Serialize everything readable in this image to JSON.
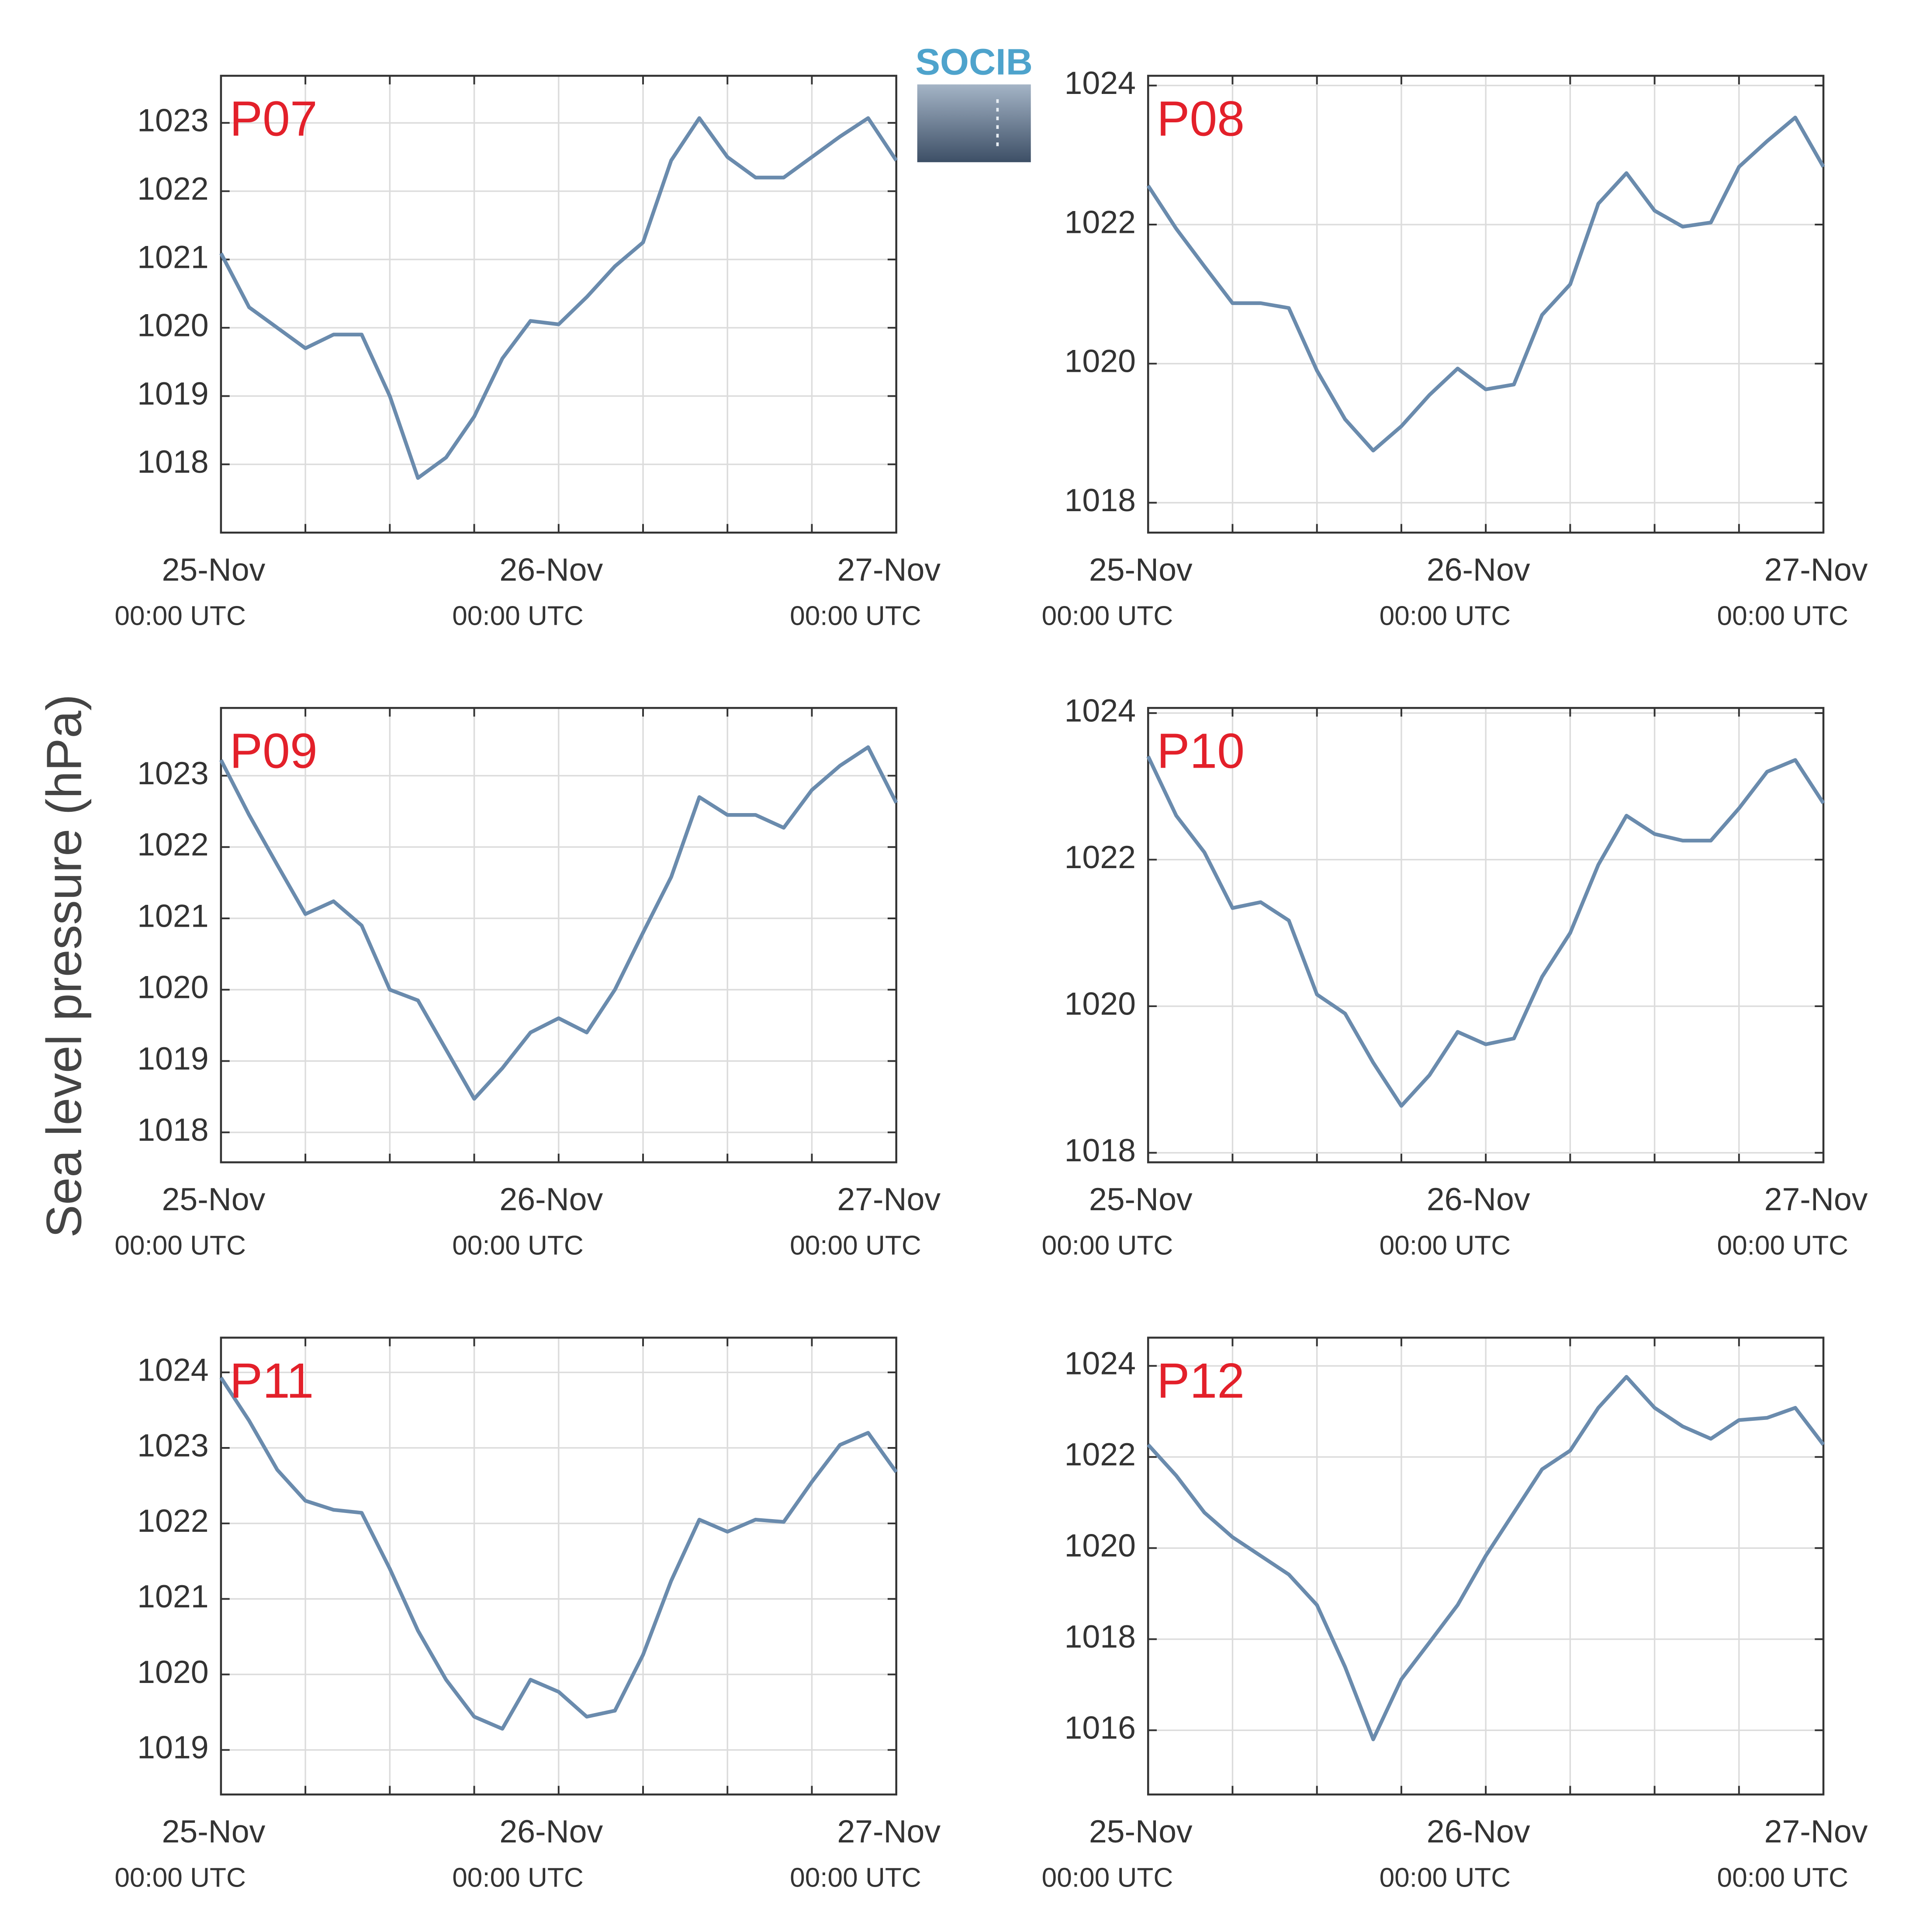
{
  "ylabel": "Sea level pressure (hPa)",
  "logo": "SOCIB",
  "chart_data": [
    {
      "type": "line",
      "title": "P07",
      "color": "#6a8bad",
      "x": [
        0,
        2,
        4,
        6,
        8,
        10,
        12,
        14,
        16,
        18,
        20,
        22,
        24,
        26,
        28,
        30,
        32,
        34,
        36,
        38,
        40,
        42,
        44,
        46,
        48
      ],
      "values": [
        1021.09,
        1020.3,
        1020.0,
        1019.7,
        1019.9,
        1019.9,
        1019.0,
        1017.8,
        1018.1,
        1018.7,
        1019.55,
        1020.1,
        1020.05,
        1020.45,
        1020.9,
        1021.25,
        1022.45,
        1023.07,
        1022.5,
        1022.2,
        1022.2,
        1022.5,
        1022.8,
        1023.07,
        1022.45
      ],
      "xlim": [
        0,
        48
      ],
      "xticks": [
        {
          "value": 0,
          "label": "25-Nov",
          "sublabel": "00:00 UTC"
        },
        {
          "value": 24,
          "label": "26-Nov",
          "sublabel": "00:00 UTC"
        },
        {
          "value": 48,
          "label": "27-Nov",
          "sublabel": "00:00 UTC"
        }
      ],
      "xgrid": [
        6,
        12,
        18,
        30,
        36,
        42
      ],
      "ylim": [
        1017.0,
        1023.69
      ],
      "yticks": [
        1018,
        1019,
        1020,
        1021,
        1022,
        1023
      ],
      "grid": true
    },
    {
      "type": "line",
      "title": "P08",
      "color": "#6a8bad",
      "x": [
        0,
        2,
        4,
        6,
        8,
        10,
        12,
        14,
        16,
        18,
        20,
        22,
        24,
        26,
        28,
        30,
        32,
        34,
        36,
        38,
        40,
        42,
        44,
        46,
        48
      ],
      "values": [
        1022.56,
        1021.94,
        1021.4,
        1020.87,
        1020.87,
        1020.8,
        1019.9,
        1019.2,
        1018.75,
        1019.1,
        1019.55,
        1019.93,
        1019.63,
        1019.7,
        1020.7,
        1021.14,
        1022.3,
        1022.74,
        1022.2,
        1021.97,
        1022.03,
        1022.83,
        1023.2,
        1023.54,
        1022.83
      ],
      "xlim": [
        0,
        48
      ],
      "xticks": [
        {
          "value": 0,
          "label": "25-Nov",
          "sublabel": "00:00 UTC"
        },
        {
          "value": 24,
          "label": "26-Nov",
          "sublabel": "00:00 UTC"
        },
        {
          "value": 48,
          "label": "27-Nov",
          "sublabel": "00:00 UTC"
        }
      ],
      "xgrid": [
        6,
        12,
        18,
        30,
        36,
        42
      ],
      "ylim": [
        1017.57,
        1024.14
      ],
      "yticks": [
        1018,
        1020,
        1022,
        1024
      ],
      "grid": true
    },
    {
      "type": "line",
      "title": "P09",
      "color": "#6a8bad",
      "x": [
        0,
        2,
        4,
        6,
        8,
        10,
        12,
        14,
        16,
        18,
        20,
        22,
        24,
        26,
        28,
        30,
        32,
        34,
        36,
        38,
        40,
        42,
        44,
        46,
        48
      ],
      "values": [
        1023.22,
        1022.45,
        1021.75,
        1021.06,
        1021.24,
        1020.9,
        1020.0,
        1019.85,
        1019.16,
        1018.47,
        1018.9,
        1019.4,
        1019.6,
        1019.4,
        1020.0,
        1020.8,
        1021.58,
        1022.7,
        1022.45,
        1022.45,
        1022.27,
        1022.8,
        1023.14,
        1023.4,
        1022.62
      ],
      "xlim": [
        0,
        48
      ],
      "xticks": [
        {
          "value": 0,
          "label": "25-Nov",
          "sublabel": "00:00 UTC"
        },
        {
          "value": 24,
          "label": "26-Nov",
          "sublabel": "00:00 UTC"
        },
        {
          "value": 48,
          "label": "27-Nov",
          "sublabel": "00:00 UTC"
        }
      ],
      "xgrid": [
        6,
        12,
        18,
        30,
        36,
        42
      ],
      "ylim": [
        1017.58,
        1023.95
      ],
      "yticks": [
        1018,
        1019,
        1020,
        1021,
        1022,
        1023
      ],
      "grid": true
    },
    {
      "type": "line",
      "title": "P10",
      "color": "#6a8bad",
      "x": [
        0,
        2,
        4,
        6,
        8,
        10,
        12,
        14,
        16,
        18,
        20,
        22,
        24,
        26,
        28,
        30,
        32,
        34,
        36,
        38,
        40,
        42,
        44,
        46,
        48
      ],
      "values": [
        1023.41,
        1022.6,
        1022.1,
        1021.34,
        1021.42,
        1021.17,
        1020.16,
        1019.9,
        1019.23,
        1018.64,
        1019.06,
        1019.65,
        1019.48,
        1019.56,
        1020.4,
        1021.0,
        1021.93,
        1022.6,
        1022.35,
        1022.26,
        1022.26,
        1022.7,
        1023.2,
        1023.36,
        1022.77
      ],
      "xlim": [
        0,
        48
      ],
      "xticks": [
        {
          "value": 0,
          "label": "25-Nov",
          "sublabel": "00:00 UTC"
        },
        {
          "value": 24,
          "label": "26-Nov",
          "sublabel": "00:00 UTC"
        },
        {
          "value": 48,
          "label": "27-Nov",
          "sublabel": "00:00 UTC"
        }
      ],
      "xgrid": [
        6,
        12,
        18,
        30,
        36,
        42
      ],
      "ylim": [
        1017.87,
        1024.07
      ],
      "yticks": [
        1018,
        1020,
        1022,
        1024
      ],
      "grid": true
    },
    {
      "type": "line",
      "title": "P11",
      "color": "#6a8bad",
      "x": [
        0,
        2,
        4,
        6,
        8,
        10,
        12,
        14,
        16,
        18,
        20,
        22,
        24,
        26,
        28,
        30,
        32,
        34,
        36,
        38,
        40,
        42,
        44,
        46,
        48
      ],
      "values": [
        1023.93,
        1023.36,
        1022.71,
        1022.3,
        1022.18,
        1022.14,
        1021.4,
        1020.58,
        1019.93,
        1019.44,
        1019.28,
        1019.93,
        1019.77,
        1019.44,
        1019.52,
        1020.26,
        1021.24,
        1022.05,
        1021.89,
        1022.05,
        1022.02,
        1022.55,
        1023.04,
        1023.2,
        1022.68
      ],
      "xlim": [
        0,
        48
      ],
      "xticks": [
        {
          "value": 0,
          "label": "25-Nov",
          "sublabel": "00:00 UTC"
        },
        {
          "value": 24,
          "label": "26-Nov",
          "sublabel": "00:00 UTC"
        },
        {
          "value": 48,
          "label": "27-Nov",
          "sublabel": "00:00 UTC"
        }
      ],
      "xgrid": [
        6,
        12,
        18,
        30,
        36,
        42
      ],
      "ylim": [
        1018.41,
        1024.46
      ],
      "yticks": [
        1019,
        1020,
        1021,
        1022,
        1023,
        1024
      ],
      "grid": true
    },
    {
      "type": "line",
      "title": "P12",
      "color": "#6a8bad",
      "x": [
        0,
        2,
        4,
        6,
        8,
        10,
        12,
        14,
        16,
        18,
        20,
        22,
        24,
        26,
        28,
        30,
        32,
        34,
        36,
        38,
        40,
        42,
        44,
        46,
        48
      ],
      "values": [
        1022.27,
        1021.59,
        1020.78,
        1020.24,
        1019.83,
        1019.42,
        1018.75,
        1017.39,
        1015.8,
        1017.12,
        1017.93,
        1018.75,
        1019.83,
        1020.78,
        1021.73,
        1022.14,
        1023.08,
        1023.76,
        1023.08,
        1022.67,
        1022.4,
        1022.81,
        1022.86,
        1023.08,
        1022.27
      ],
      "xlim": [
        0,
        48
      ],
      "xticks": [
        {
          "value": 0,
          "label": "25-Nov",
          "sublabel": "00:00 UTC"
        },
        {
          "value": 24,
          "label": "26-Nov",
          "sublabel": "00:00 UTC"
        },
        {
          "value": 48,
          "label": "27-Nov",
          "sublabel": "00:00 UTC"
        }
      ],
      "xgrid": [
        6,
        12,
        18,
        30,
        36,
        42
      ],
      "ylim": [
        1014.59,
        1024.62
      ],
      "yticks": [
        1016,
        1018,
        1020,
        1022,
        1024
      ],
      "grid": true
    }
  ]
}
